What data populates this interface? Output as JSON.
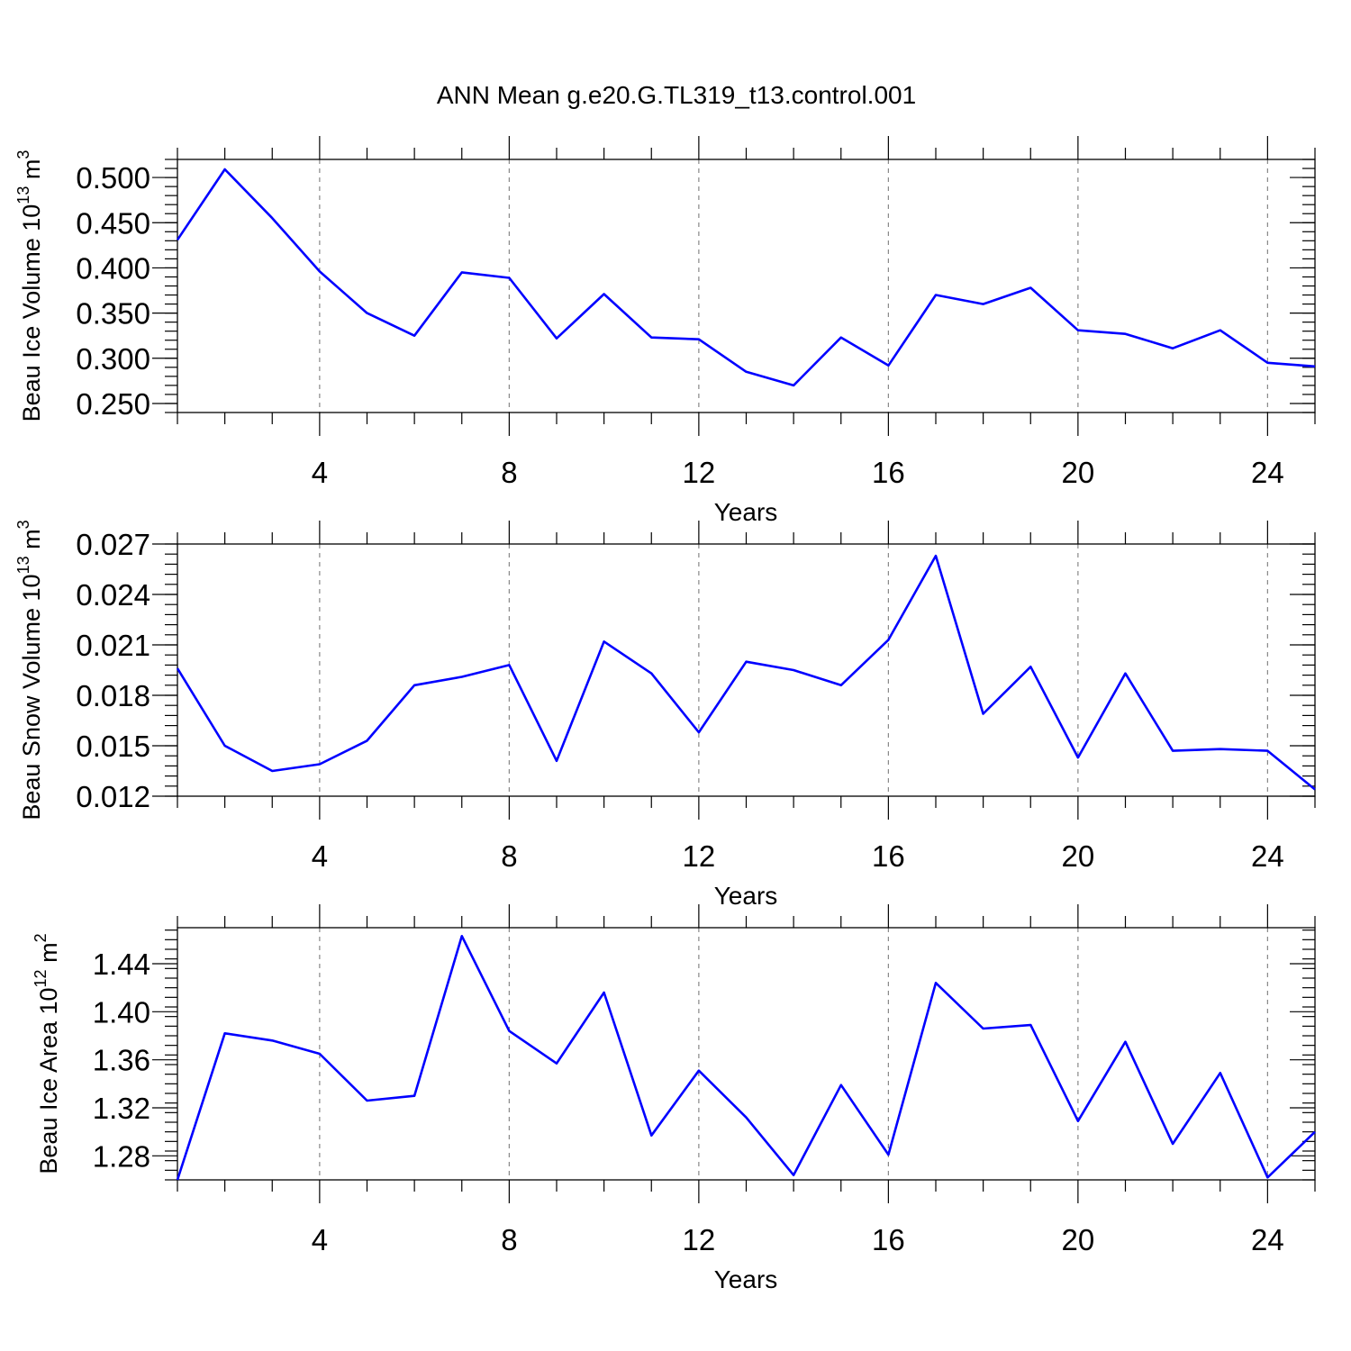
{
  "title": "ANN Mean g.e20.G.TL319_t13.control.001",
  "colors": {
    "series": "#0000ff",
    "grid": "#888888",
    "axis": "#000000"
  },
  "chart_data": [
    {
      "type": "line",
      "ylabel": "Beau Ice Volume 10",
      "ylabel_exp": "13",
      "ylabel_unit": " m",
      "ylabel_unit_exp": "3",
      "xlabel": "Years",
      "xlim": [
        1,
        25
      ],
      "ylim": [
        0.24,
        0.52
      ],
      "xticks": [
        4,
        8,
        12,
        16,
        20,
        24
      ],
      "xtick_labels": [
        "4",
        "8",
        "12",
        "16",
        "20",
        "24"
      ],
      "yticks": [
        0.25,
        0.3,
        0.35,
        0.4,
        0.45,
        0.5
      ],
      "ytick_labels": [
        "0.250",
        "0.300",
        "0.350",
        "0.400",
        "0.450",
        "0.500"
      ],
      "grid": "vertical dashed at labeled x ticks",
      "x": [
        1,
        2,
        3,
        4,
        5,
        6,
        7,
        8,
        9,
        10,
        11,
        12,
        13,
        14,
        15,
        16,
        17,
        18,
        19,
        20,
        21,
        22,
        23,
        24,
        25
      ],
      "values": [
        0.431,
        0.509,
        0.455,
        0.396,
        0.35,
        0.325,
        0.395,
        0.389,
        0.322,
        0.371,
        0.323,
        0.321,
        0.285,
        0.27,
        0.323,
        0.292,
        0.37,
        0.36,
        0.378,
        0.331,
        0.327,
        0.311,
        0.331,
        0.295,
        0.291
      ]
    },
    {
      "type": "line",
      "ylabel": "Beau Snow Volume 10",
      "ylabel_exp": "13",
      "ylabel_unit": " m",
      "ylabel_unit_exp": "3",
      "xlabel": "Years",
      "xlim": [
        1,
        25
      ],
      "ylim": [
        0.012,
        0.027
      ],
      "xticks": [
        4,
        8,
        12,
        16,
        20,
        24
      ],
      "xtick_labels": [
        "4",
        "8",
        "12",
        "16",
        "20",
        "24"
      ],
      "yticks": [
        0.012,
        0.015,
        0.018,
        0.021,
        0.024,
        0.027
      ],
      "ytick_labels": [
        "0.012",
        "0.015",
        "0.018",
        "0.021",
        "0.024",
        "0.027"
      ],
      "grid": "vertical dashed at labeled x ticks",
      "x": [
        1,
        2,
        3,
        4,
        5,
        6,
        7,
        8,
        9,
        10,
        11,
        12,
        13,
        14,
        15,
        16,
        17,
        18,
        19,
        20,
        21,
        22,
        23,
        24,
        25
      ],
      "values": [
        0.0196,
        0.015,
        0.0135,
        0.0139,
        0.0153,
        0.0186,
        0.0191,
        0.0198,
        0.0141,
        0.0212,
        0.0193,
        0.0158,
        0.02,
        0.0195,
        0.0186,
        0.0213,
        0.0263,
        0.0169,
        0.0197,
        0.0143,
        0.0193,
        0.0147,
        0.0148,
        0.0147,
        0.0124
      ]
    },
    {
      "type": "line",
      "ylabel": "Beau Ice Area 10",
      "ylabel_exp": "12",
      "ylabel_unit": " m",
      "ylabel_unit_exp": "2",
      "xlabel": "Years",
      "xlim": [
        1,
        25
      ],
      "ylim": [
        1.26,
        1.47
      ],
      "xticks": [
        4,
        8,
        12,
        16,
        20,
        24
      ],
      "xtick_labels": [
        "4",
        "8",
        "12",
        "16",
        "20",
        "24"
      ],
      "yticks": [
        1.28,
        1.32,
        1.36,
        1.4,
        1.44
      ],
      "ytick_labels": [
        "1.28",
        "1.32",
        "1.36",
        "1.40",
        "1.44"
      ],
      "grid": "vertical dashed at labeled x ticks",
      "x": [
        1,
        2,
        3,
        4,
        5,
        6,
        7,
        8,
        9,
        10,
        11,
        12,
        13,
        14,
        15,
        16,
        17,
        18,
        19,
        20,
        21,
        22,
        23,
        24,
        25
      ],
      "values": [
        1.26,
        1.382,
        1.376,
        1.365,
        1.326,
        1.33,
        1.463,
        1.384,
        1.357,
        1.416,
        1.297,
        1.351,
        1.312,
        1.264,
        1.339,
        1.281,
        1.424,
        1.386,
        1.389,
        1.309,
        1.375,
        1.29,
        1.349,
        1.262,
        1.3
      ]
    }
  ]
}
